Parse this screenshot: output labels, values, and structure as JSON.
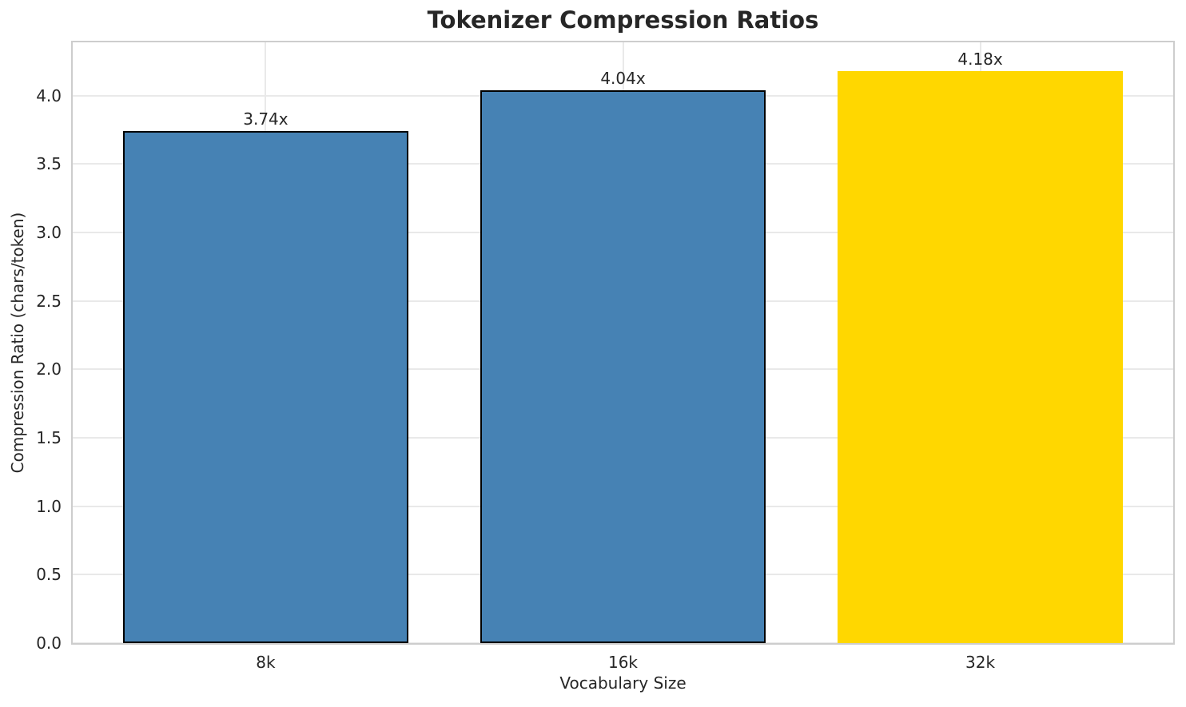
{
  "chart_data": {
    "type": "bar",
    "title": "Tokenizer Compression Ratios",
    "xlabel": "Vocabulary Size",
    "ylabel": "Compression Ratio (chars/token)",
    "categories": [
      "8k",
      "16k",
      "32k"
    ],
    "values": [
      3.74,
      4.04,
      4.18
    ],
    "bar_labels": [
      "3.74x",
      "4.04x",
      "4.18x"
    ],
    "bar_colors": [
      "#4682b4",
      "#4682b4",
      "#ffd700"
    ],
    "bar_edge_colors": [
      "#000000",
      "#000000",
      "none"
    ],
    "bar_width_fraction": 0.8,
    "xlim": [
      -0.54,
      2.54
    ],
    "ylim": [
      0,
      4.39
    ],
    "ytick_labels": [
      "0.0",
      "0.5",
      "1.0",
      "1.5",
      "2.0",
      "2.5",
      "3.0",
      "3.5",
      "4.0"
    ],
    "grid": true,
    "legend": "none",
    "colors": {
      "text": "#262626",
      "grid": "#e9e9e9",
      "spine": "#cdcdcd",
      "blue_bar": "#4682b4",
      "gold_bar": "#ffd700",
      "bar_edge": "#000000"
    }
  }
}
